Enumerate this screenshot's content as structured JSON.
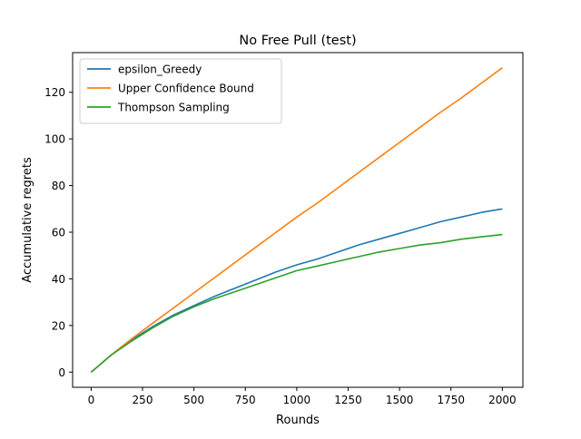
{
  "chart_data": {
    "type": "line",
    "title": "No Free Pull (test)",
    "xlabel": "Rounds",
    "ylabel": "Accumulative regrets",
    "xlim": [
      -90,
      2100
    ],
    "ylim": [
      -6.5,
      137
    ],
    "xticks": [
      0,
      250,
      500,
      750,
      1000,
      1250,
      1500,
      1750,
      2000
    ],
    "xtick_labels": [
      "0",
      "250",
      "500",
      "750",
      "1000",
      "1250",
      "1500",
      "1750",
      "2000"
    ],
    "yticks": [
      0,
      20,
      40,
      60,
      80,
      100,
      120
    ],
    "ytick_labels": [
      "0",
      "20",
      "40",
      "60",
      "80",
      "100",
      "120"
    ],
    "grid": false,
    "legend_position": "upper left",
    "series": [
      {
        "name": "epsilon_Greedy",
        "color": "#1f77b4",
        "x": [
          0,
          100,
          200,
          300,
          400,
          500,
          600,
          700,
          800,
          900,
          1000,
          1100,
          1200,
          1300,
          1400,
          1500,
          1600,
          1700,
          1800,
          1900,
          2000
        ],
        "y": [
          0,
          7.5,
          14,
          19.5,
          24.5,
          28.5,
          32.5,
          36,
          39.5,
          43,
          46,
          48.5,
          51.5,
          54.5,
          57,
          59.5,
          62,
          64.5,
          66.5,
          68.5,
          70
        ]
      },
      {
        "name": "Upper Confidence Bound",
        "color": "#ff7f0e",
        "x": [
          0,
          100,
          200,
          300,
          400,
          500,
          600,
          700,
          800,
          900,
          1000,
          1100,
          1200,
          1300,
          1400,
          1500,
          1600,
          1700,
          1800,
          1900,
          2000
        ],
        "y": [
          0,
          7.5,
          14.5,
          21,
          27.5,
          34,
          40.5,
          47,
          53.5,
          60,
          66.5,
          72.5,
          79,
          85.5,
          92,
          98.5,
          105,
          111.5,
          117.5,
          124,
          130.5
        ]
      },
      {
        "name": "Thompson Sampling",
        "color": "#2ca02c",
        "x": [
          0,
          100,
          200,
          300,
          400,
          500,
          600,
          700,
          800,
          900,
          1000,
          1100,
          1200,
          1300,
          1400,
          1500,
          1600,
          1700,
          1800,
          1900,
          2000
        ],
        "y": [
          0,
          7.5,
          13.5,
          19,
          24,
          28,
          31.5,
          34.5,
          37.5,
          40.5,
          43.5,
          45.5,
          47.5,
          49.5,
          51.5,
          53,
          54.5,
          55.5,
          57,
          58,
          59
        ]
      }
    ]
  }
}
